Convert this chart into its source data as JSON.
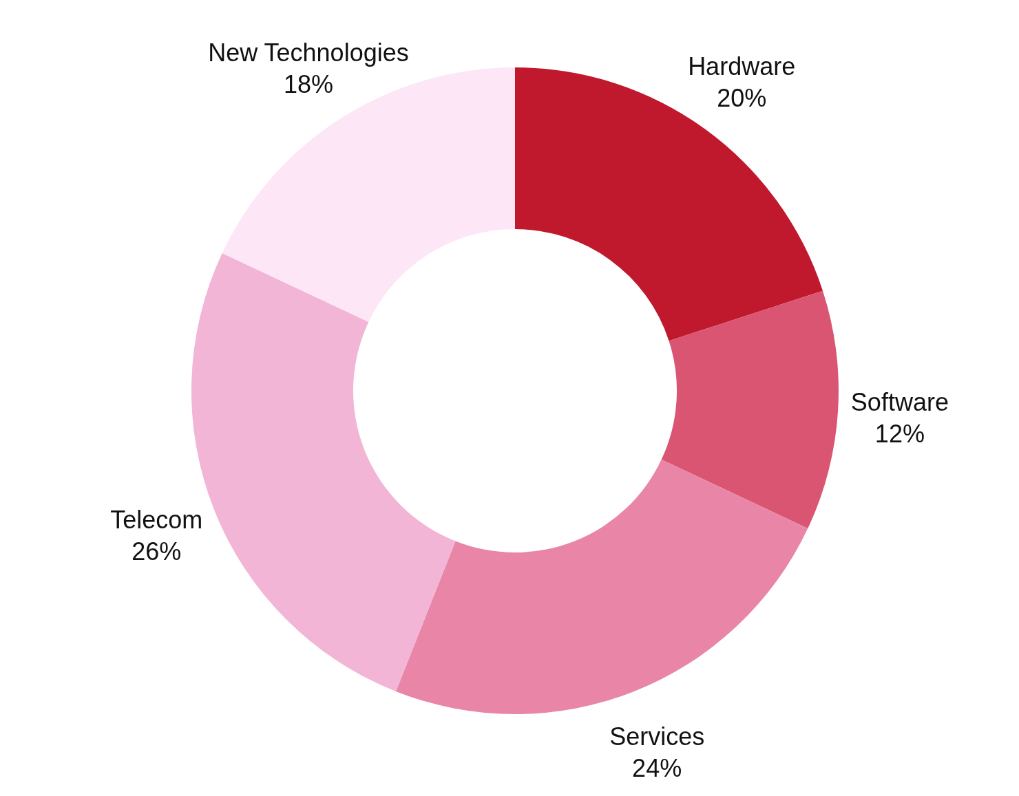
{
  "chart_data": {
    "type": "donut",
    "categories": [
      "Hardware",
      "Software",
      "Services",
      "Telecom",
      "New Technologies"
    ],
    "values": [
      20,
      12,
      24,
      26,
      18
    ],
    "value_labels": [
      "20%",
      "12%",
      "24%",
      "26%",
      "18%"
    ],
    "colors": [
      "#c0192d",
      "#d95572",
      "#e986a8",
      "#f2b5d6",
      "#fde6f6"
    ]
  }
}
